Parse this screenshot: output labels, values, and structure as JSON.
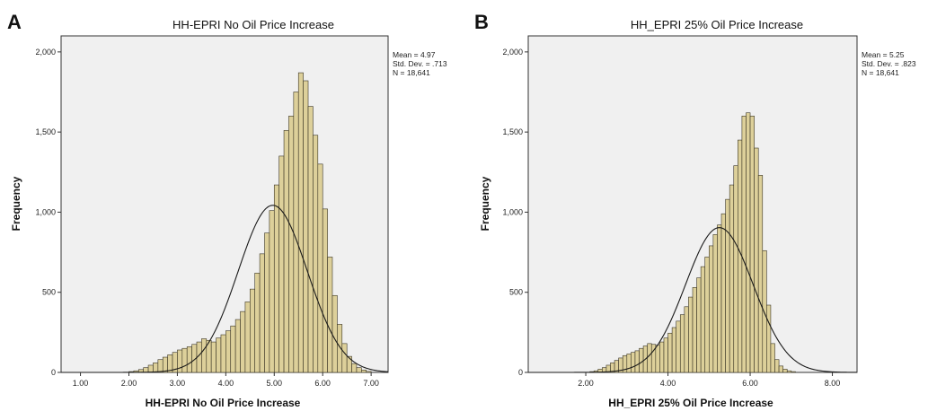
{
  "chart_data": [
    {
      "type": "bar",
      "panel": "A",
      "title": "HH-EPRI No Oil Price Increase",
      "xlabel": "HH-EPRI No Oil Price Increase",
      "ylabel": "Frequency",
      "xlim": [
        0.6,
        7.35
      ],
      "ylim": [
        0,
        2100
      ],
      "x_ticks": [
        1.0,
        2.0,
        3.0,
        4.0,
        5.0,
        6.0,
        7.0
      ],
      "x_tick_labels": [
        "1.00",
        "2.00",
        "3.00",
        "4.00",
        "5.00",
        "6.00",
        "7.00"
      ],
      "y_ticks": [
        0,
        500,
        1000,
        1500,
        2000
      ],
      "y_tick_labels": [
        "0",
        "500",
        "1,000",
        "1,500",
        "2,000"
      ],
      "bin_width": 0.1,
      "bin_start": 2.0,
      "values": [
        5,
        10,
        18,
        30,
        45,
        60,
        80,
        95,
        110,
        125,
        140,
        150,
        160,
        175,
        190,
        210,
        200,
        190,
        215,
        235,
        260,
        290,
        330,
        380,
        440,
        520,
        620,
        740,
        870,
        1010,
        1170,
        1350,
        1510,
        1600,
        1750,
        1870,
        1820,
        1660,
        1480,
        1300,
        1020,
        720,
        480,
        300,
        180,
        100,
        55,
        30,
        15,
        6
      ],
      "normal_curve": {
        "mean": 4.97,
        "sd": 0.713,
        "n": 18641
      },
      "grid": false,
      "legend": "none",
      "stats": {
        "mean": "Mean = 4.97",
        "sd": "Std. Dev. = .713",
        "n": "N = 18,641"
      },
      "colors": {
        "bar_fill": "#ddd09a",
        "bar_stroke": "#3a3525",
        "plot_bg": "#f0f0f0",
        "curve": "#1a1a1a"
      }
    },
    {
      "type": "bar",
      "panel": "B",
      "title": "HH_EPRI 25% Oil Price Increase",
      "xlabel": "HH_EPRI 25% Oil Price Increase",
      "ylabel": "Frequency",
      "xlim": [
        0.6,
        8.6
      ],
      "ylim": [
        0,
        2100
      ],
      "x_ticks": [
        2.0,
        4.0,
        6.0,
        8.0
      ],
      "x_tick_labels": [
        "2.00",
        "4.00",
        "6.00",
        "8.00"
      ],
      "y_ticks": [
        0,
        500,
        1000,
        1500,
        2000
      ],
      "y_tick_labels": [
        "0",
        "500",
        "1,000",
        "1,500",
        "2,000"
      ],
      "bin_width": 0.1,
      "bin_start": 2.1,
      "values": [
        5,
        10,
        20,
        30,
        45,
        60,
        75,
        90,
        105,
        115,
        125,
        135,
        150,
        165,
        180,
        175,
        170,
        190,
        215,
        245,
        280,
        320,
        360,
        410,
        470,
        530,
        590,
        660,
        720,
        790,
        860,
        920,
        990,
        1080,
        1170,
        1290,
        1450,
        1600,
        1620,
        1600,
        1400,
        1230,
        760,
        420,
        180,
        80,
        40,
        20,
        10,
        5
      ],
      "normal_curve": {
        "mean": 5.25,
        "sd": 0.823,
        "n": 18641
      },
      "grid": false,
      "legend": "none",
      "stats": {
        "mean": "Mean = 5.25",
        "sd": "Std. Dev. = .823",
        "n": "N = 18,641"
      },
      "colors": {
        "bar_fill": "#ddd09a",
        "bar_stroke": "#3a3525",
        "plot_bg": "#f0f0f0",
        "curve": "#1a1a1a"
      }
    }
  ]
}
